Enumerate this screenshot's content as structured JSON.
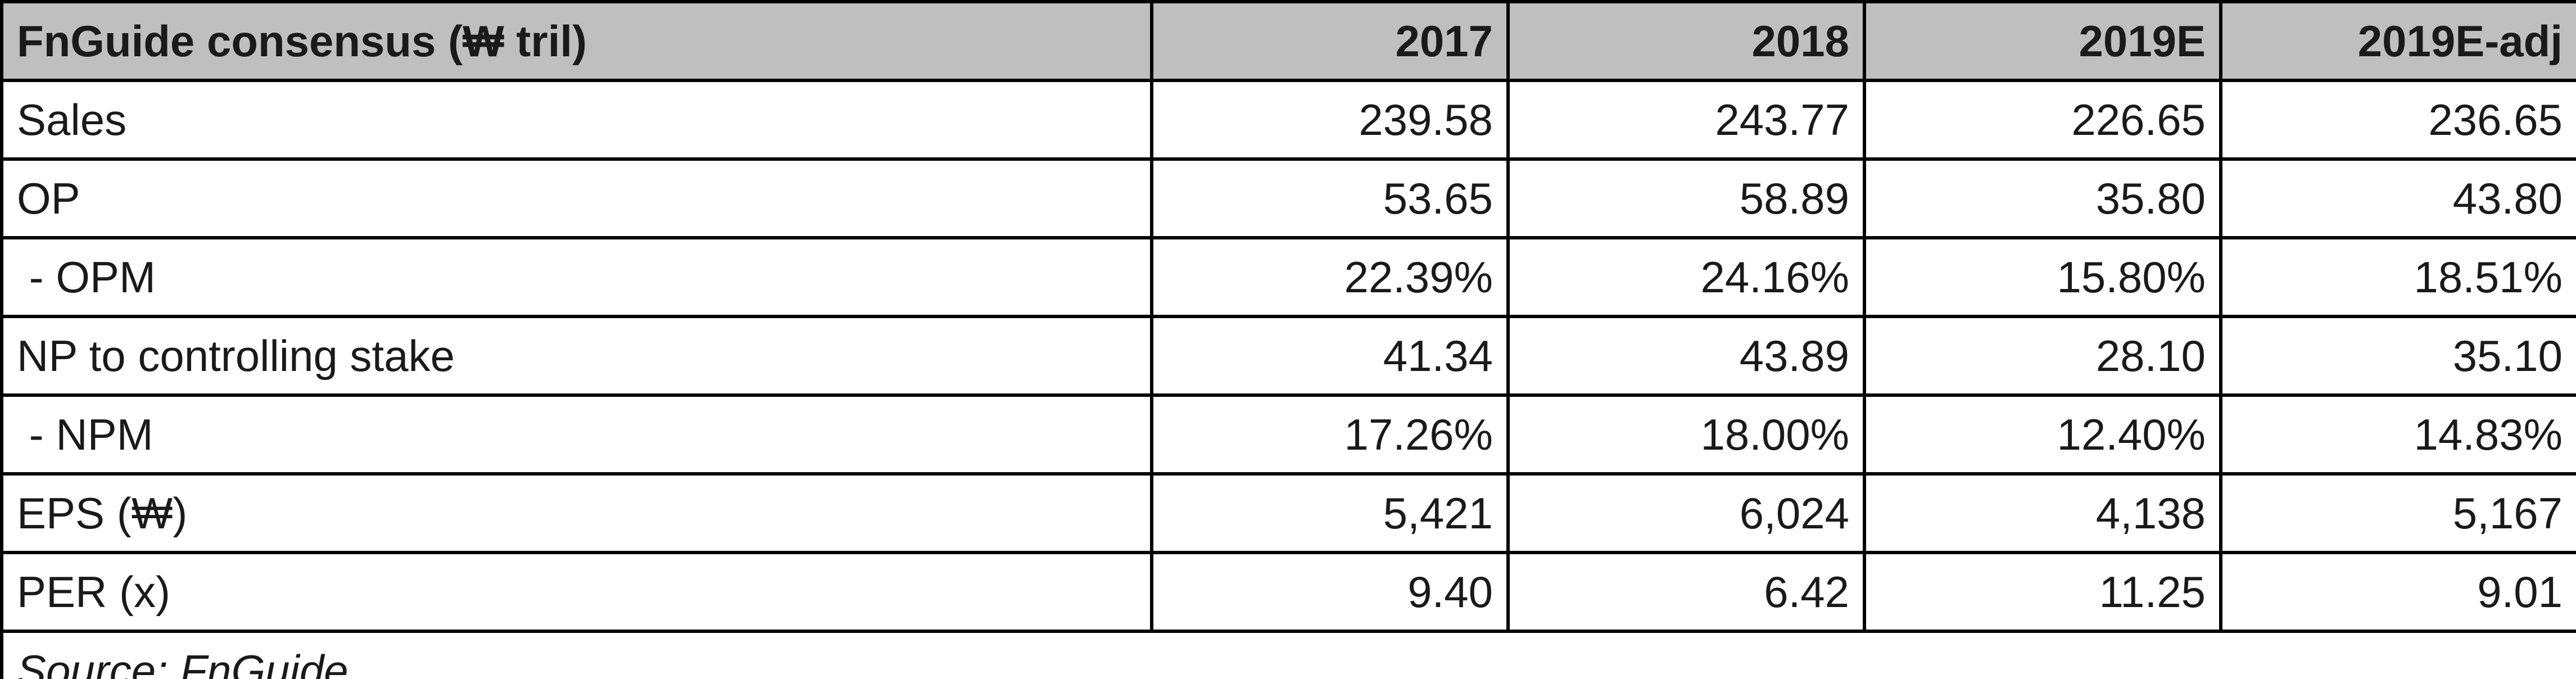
{
  "table": {
    "header": [
      "FnGuide consensus (₩ tril)",
      "2017",
      "2018",
      "2019E",
      "2019E-adj"
    ],
    "rows": [
      [
        "Sales",
        "239.58",
        "243.77",
        "226.65",
        "236.65"
      ],
      [
        "OP",
        "53.65",
        "58.89",
        "35.80",
        "43.80"
      ],
      [
        " - OPM",
        "22.39%",
        "24.16%",
        "15.80%",
        "18.51%"
      ],
      [
        "NP to controlling stake",
        "41.34",
        "43.89",
        "28.10",
        "35.10"
      ],
      [
        " - NPM",
        "17.26%",
        "18.00%",
        "12.40%",
        "14.83%"
      ],
      [
        "EPS (₩)",
        "5,421",
        "6,024",
        "4,138",
        "5,167"
      ],
      [
        "PER (x)",
        "9.40",
        "6.42",
        "11.25",
        "9.01"
      ]
    ],
    "source": "Source: FnGuide"
  }
}
